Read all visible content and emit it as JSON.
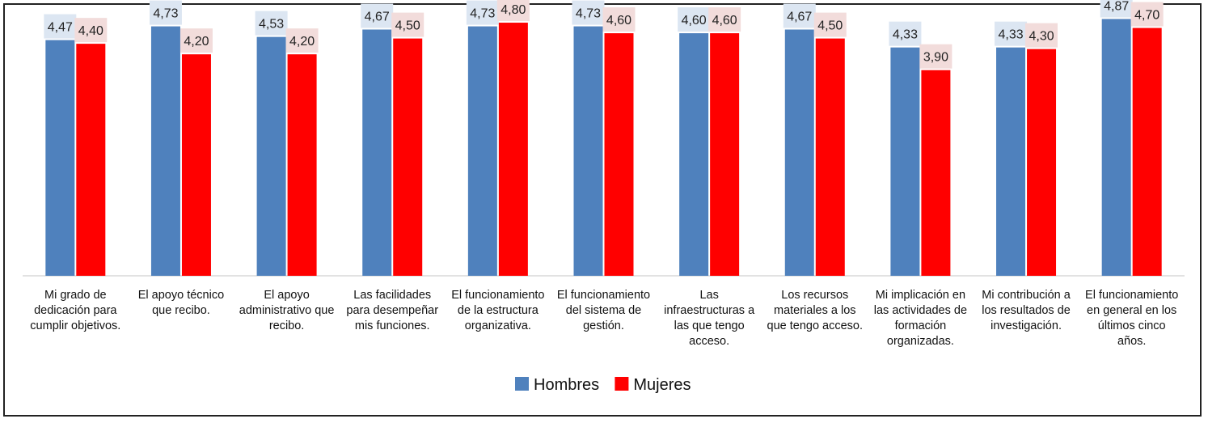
{
  "chart_data": {
    "type": "bar",
    "title": "",
    "xlabel": "",
    "ylabel": "",
    "ylim": [
      0,
      5
    ],
    "grid": false,
    "legend_position": "bottom",
    "categories": [
      [
        "Mi grado de",
        "dedicación para",
        "cumplir objetivos."
      ],
      [
        "El apoyo técnico",
        "que recibo."
      ],
      [
        "El apoyo",
        "administrativo que",
        "recibo."
      ],
      [
        "Las facilidades",
        "para desempeñar",
        "mis funciones."
      ],
      [
        "El funcionamiento",
        "de la estructura",
        "organizativa."
      ],
      [
        "El funcionamiento",
        "del sistema de",
        "gestión."
      ],
      [
        "Las",
        "infraestructuras a",
        "las que tengo",
        "acceso."
      ],
      [
        "Los recursos",
        "materiales a los",
        "que tengo acceso."
      ],
      [
        "Mi implicación en",
        "las actividades de",
        "formación",
        "organizadas."
      ],
      [
        "Mi contribución a",
        "los resultados de",
        "investigación."
      ],
      [
        "El funcionamiento",
        "en general en los",
        "últimos cinco",
        "años."
      ]
    ],
    "series": [
      {
        "name": "Hombres",
        "color": "#4f81bd",
        "label_bg": "#dce6f2",
        "values": [
          4.47,
          4.73,
          4.53,
          4.67,
          4.73,
          4.73,
          4.6,
          4.67,
          4.33,
          4.33,
          4.87
        ],
        "labels": [
          "4,47",
          "4,73",
          "4,53",
          "4,67",
          "4,73",
          "4,73",
          "4,60",
          "4,67",
          "4,33",
          "4,33",
          "4,87"
        ]
      },
      {
        "name": "Mujeres",
        "color": "#ff0000",
        "label_bg": "#f2dcdb",
        "values": [
          4.4,
          4.2,
          4.2,
          4.5,
          4.8,
          4.6,
          4.6,
          4.5,
          3.9,
          4.3,
          4.7
        ],
        "labels": [
          "4,40",
          "4,20",
          "4,20",
          "4,50",
          "4,80",
          "4,60",
          "4,60",
          "4,50",
          "3,90",
          "4,30",
          "4,70"
        ]
      }
    ]
  }
}
